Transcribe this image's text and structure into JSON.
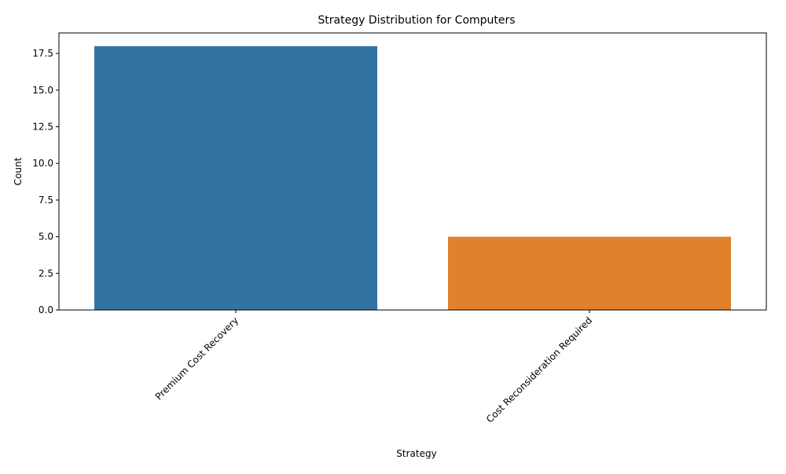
{
  "chart_data": {
    "type": "bar",
    "title": "Strategy Distribution for Computers",
    "xlabel": "Strategy",
    "ylabel": "Count",
    "categories": [
      "Premium Cost Recovery",
      "Cost Reconsideration Required"
    ],
    "values": [
      18,
      5
    ],
    "bar_colors": [
      "#3274a1",
      "#e1812c"
    ],
    "ylim": [
      0,
      18.9
    ],
    "yticks": [
      0,
      2.5,
      5,
      7.5,
      10,
      12.5,
      15,
      17.5
    ],
    "ytick_labels": [
      "0.0",
      "2.5",
      "5.0",
      "7.5",
      "10.0",
      "12.5",
      "15.0",
      "17.5"
    ],
    "grid": false,
    "legend": "none"
  }
}
